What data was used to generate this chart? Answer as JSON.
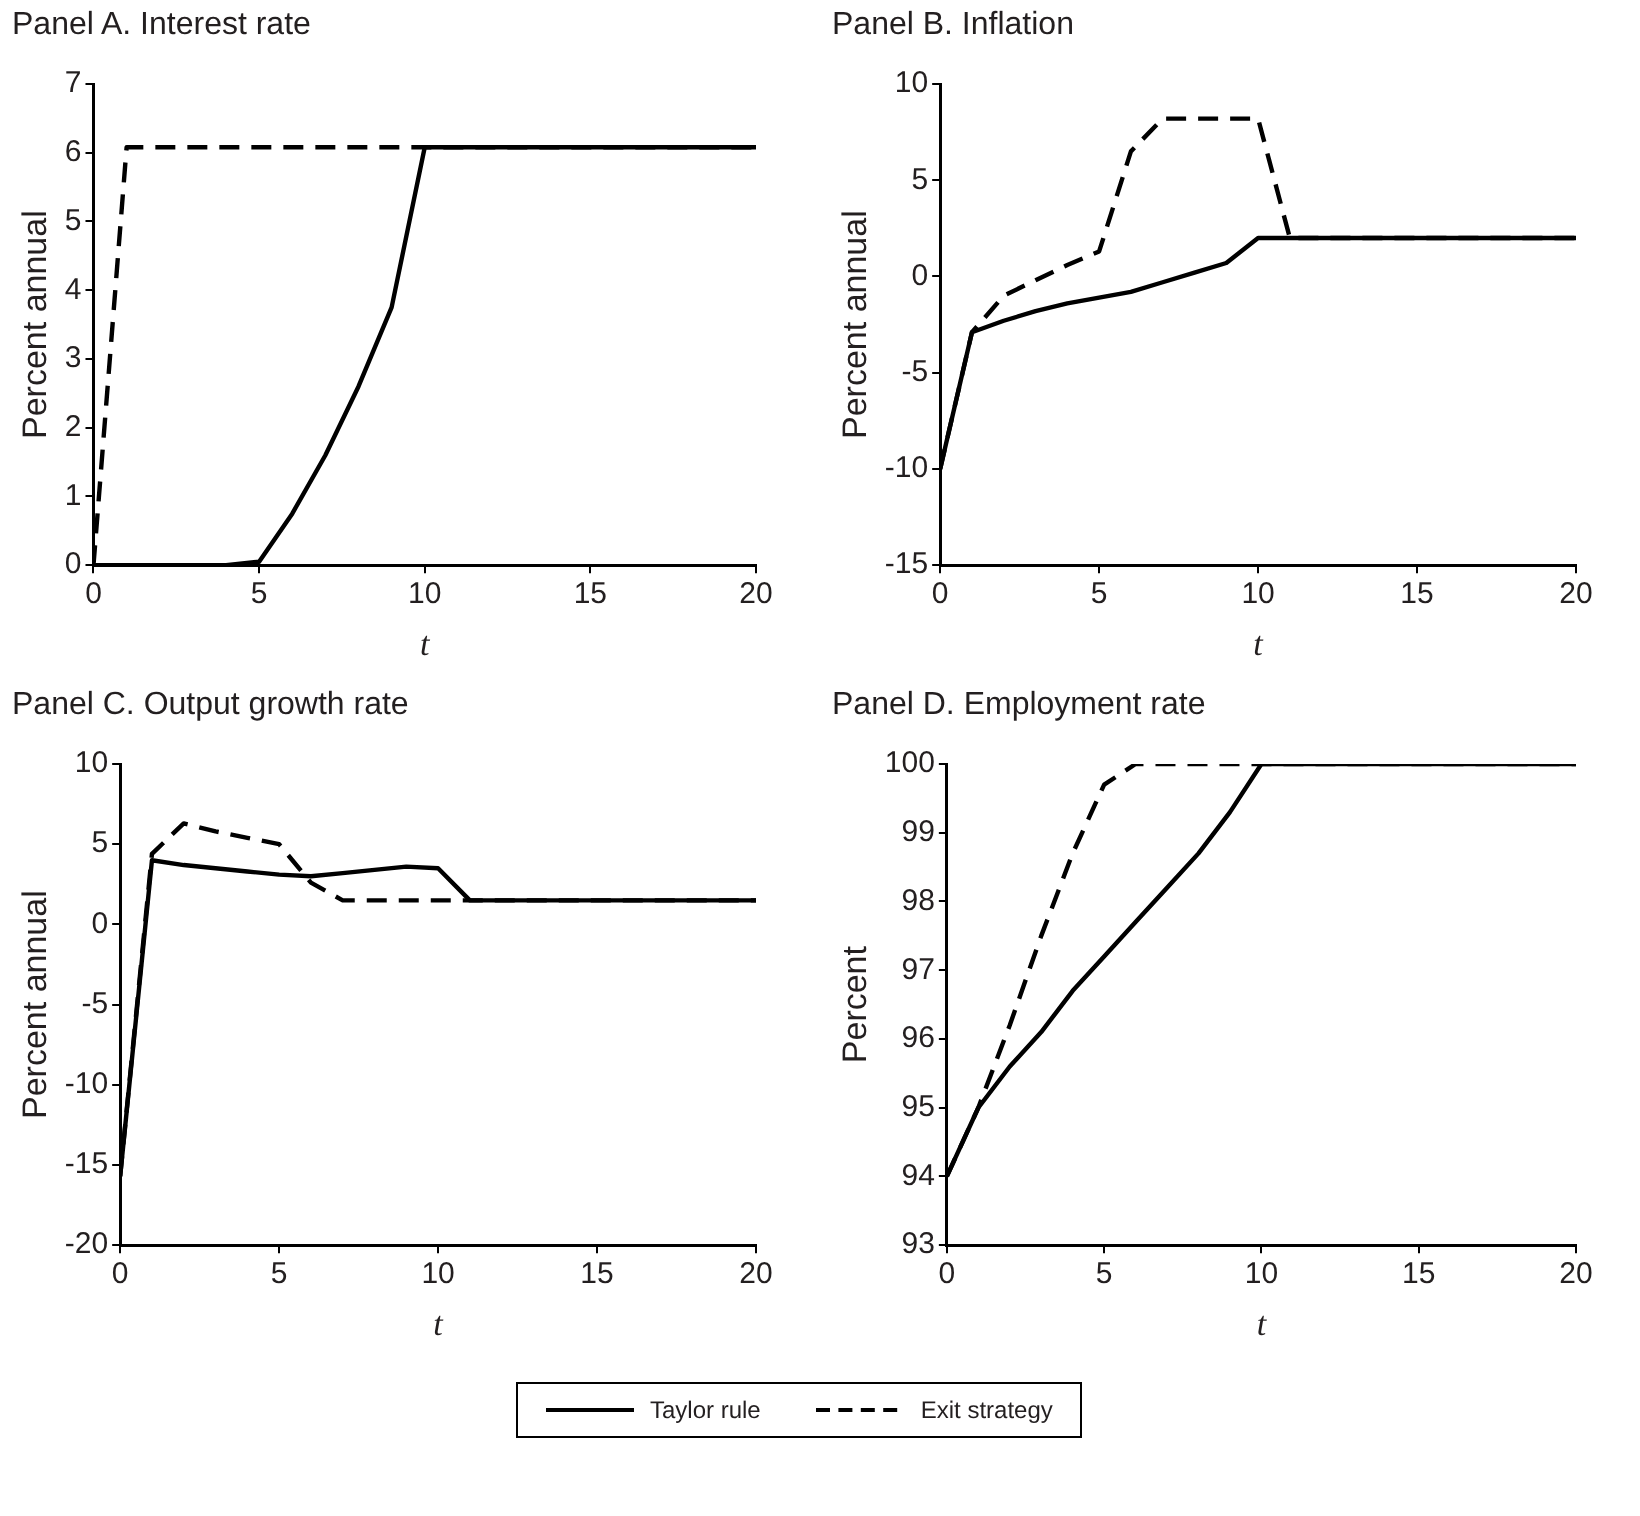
{
  "chart_data": [
    {
      "type": "line",
      "title": "Panel A. Interest rate",
      "xlabel": "t",
      "ylabel": "Percent annual",
      "x": [
        0,
        1,
        2,
        3,
        4,
        5,
        6,
        7,
        8,
        9,
        10,
        11,
        12,
        13,
        14,
        15,
        16,
        17,
        18,
        19,
        20
      ],
      "series": [
        {
          "color": "#000000",
          "line_style": "solid",
          "values": [
            0,
            0,
            0,
            0,
            0,
            0.05,
            0.75,
            1.6,
            2.6,
            3.75,
            6.08,
            6.08,
            6.08,
            6.08,
            6.08,
            6.08,
            6.08,
            6.08,
            6.08,
            6.08,
            6.08
          ]
        },
        {
          "color": "#000000",
          "line_style": "dashed",
          "values": [
            0,
            6.08,
            6.08,
            6.08,
            6.08,
            6.08,
            6.08,
            6.08,
            6.08,
            6.08,
            6.08,
            6.08,
            6.08,
            6.08,
            6.08,
            6.08,
            6.08,
            6.08,
            6.08,
            6.08,
            6.08
          ]
        }
      ],
      "xlim": [
        0,
        20
      ],
      "xticks": [
        0,
        5,
        10,
        15,
        20
      ],
      "ylim": [
        0,
        7
      ],
      "yticks": [
        0,
        1,
        2,
        3,
        4,
        5,
        6,
        7
      ],
      "grid": false,
      "legend": false,
      "marker": "none"
    },
    {
      "type": "line",
      "title": "Panel B. Inflation",
      "xlabel": "t",
      "ylabel": "Percent annual",
      "x": [
        0,
        1,
        2,
        3,
        4,
        5,
        6,
        7,
        8,
        9,
        10,
        11,
        12,
        13,
        14,
        15,
        16,
        17,
        18,
        19,
        20
      ],
      "series": [
        {
          "color": "#000000",
          "line_style": "solid",
          "values": [
            -10,
            -2.9,
            -2.3,
            -1.8,
            -1.4,
            -1.1,
            -0.8,
            -0.3,
            0.2,
            0.7,
            2,
            2,
            2,
            2,
            2,
            2,
            2,
            2,
            2,
            2,
            2
          ]
        },
        {
          "color": "#000000",
          "line_style": "dashed",
          "values": [
            -10,
            -2.9,
            -1,
            -0.2,
            0.6,
            1.3,
            6.5,
            8.2,
            8.2,
            8.2,
            8.2,
            2,
            2,
            2,
            2,
            2,
            2,
            2,
            2,
            2,
            2
          ]
        }
      ],
      "xlim": [
        0,
        20
      ],
      "xticks": [
        0,
        5,
        10,
        15,
        20
      ],
      "ylim": [
        -15,
        10
      ],
      "yticks": [
        -15,
        -10,
        -5,
        0,
        5,
        10
      ],
      "grid": false,
      "legend": false,
      "marker": "none"
    },
    {
      "type": "line",
      "title": "Panel C. Output growth rate",
      "xlabel": "t",
      "ylabel": "Percent annual",
      "x": [
        0,
        1,
        2,
        3,
        4,
        5,
        6,
        7,
        8,
        9,
        10,
        11,
        12,
        13,
        14,
        15,
        16,
        17,
        18,
        19,
        20
      ],
      "series": [
        {
          "color": "#000000",
          "line_style": "solid",
          "values": [
            -15.7,
            4,
            3.7,
            3.5,
            3.3,
            3.1,
            3,
            3.2,
            3.4,
            3.6,
            3.5,
            1.5,
            1.5,
            1.5,
            1.5,
            1.5,
            1.5,
            1.5,
            1.5,
            1.5,
            1.5
          ]
        },
        {
          "color": "#000000",
          "line_style": "dashed",
          "values": [
            -15.7,
            4.4,
            6.3,
            5.8,
            5.4,
            5,
            2.6,
            1.5,
            1.5,
            1.5,
            1.5,
            1.5,
            1.5,
            1.5,
            1.5,
            1.5,
            1.5,
            1.5,
            1.5,
            1.5,
            1.5
          ]
        }
      ],
      "xlim": [
        0,
        20
      ],
      "xticks": [
        0,
        5,
        10,
        15,
        20
      ],
      "ylim": [
        -20,
        10
      ],
      "yticks": [
        -20,
        -15,
        -10,
        -5,
        0,
        5,
        10
      ],
      "grid": false,
      "legend": false,
      "marker": "none"
    },
    {
      "type": "line",
      "title": "Panel D. Employment rate",
      "xlabel": "t",
      "ylabel": "Percent",
      "x": [
        0,
        1,
        2,
        3,
        4,
        5,
        6,
        7,
        8,
        9,
        10,
        11,
        12,
        13,
        14,
        15,
        16,
        17,
        18,
        19,
        20
      ],
      "series": [
        {
          "name": "Taylor rule",
          "color": "#000000",
          "line_style": "solid",
          "values": [
            94,
            95,
            95.6,
            96.1,
            96.7,
            97.2,
            97.7,
            98.2,
            98.7,
            99.3,
            100,
            100,
            100,
            100,
            100,
            100,
            100,
            100,
            100,
            100,
            100
          ]
        },
        {
          "name": "Exit strategy",
          "color": "#000000",
          "line_style": "dashed",
          "values": [
            94,
            95,
            96.2,
            97.5,
            98.7,
            99.7,
            100,
            100,
            100,
            100,
            100,
            100,
            100,
            100,
            100,
            100,
            100,
            100,
            100,
            100,
            100
          ]
        }
      ],
      "xlim": [
        0,
        20
      ],
      "xticks": [
        0,
        5,
        10,
        15,
        20
      ],
      "ylim": [
        93,
        100
      ],
      "yticks": [
        93,
        94,
        95,
        96,
        97,
        98,
        99,
        100
      ],
      "grid": false,
      "legend": "bottom",
      "marker": "none"
    }
  ]
}
